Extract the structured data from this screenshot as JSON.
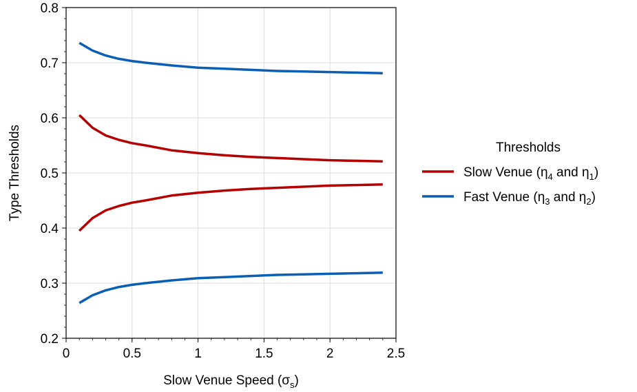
{
  "chart_data": {
    "type": "line",
    "xlabel": "Slow Venue Speed (σ",
    "xlabel_sub": "s",
    "xlabel_end": ")",
    "ylabel": "Type Thresholds",
    "xlim": [
      0,
      2.5
    ],
    "ylim": [
      0.2,
      0.8
    ],
    "xticks": [
      "0",
      "0.5",
      "1",
      "1.5",
      "2",
      "2.5"
    ],
    "yticks": [
      "0.2",
      "0.3",
      "0.4",
      "0.5",
      "0.6",
      "0.7",
      "0.8"
    ],
    "grid": true,
    "legend": {
      "title": "Thresholds",
      "placement": "right",
      "entries": [
        {
          "pre": "Slow Venue (η",
          "a": "4",
          "mid": " and η",
          "b": "1",
          "post": ")",
          "color": "#b40000"
        },
        {
          "pre": "Fast Venue (η",
          "a": "3",
          "mid": " and η",
          "b": "2",
          "post": ")",
          "color": "#0a5fb4"
        }
      ]
    },
    "x": [
      0.1,
      0.2,
      0.3,
      0.4,
      0.5,
      0.6,
      0.8,
      1.0,
      1.2,
      1.4,
      1.6,
      1.8,
      2.0,
      2.2,
      2.4
    ],
    "series": [
      {
        "group": "slow",
        "color": "#b40000",
        "values": [
          0.605,
          0.582,
          0.568,
          0.56,
          0.554,
          0.55,
          0.541,
          0.536,
          0.532,
          0.529,
          0.527,
          0.525,
          0.523,
          0.522,
          0.521
        ]
      },
      {
        "group": "slow",
        "color": "#b40000",
        "values": [
          0.395,
          0.418,
          0.432,
          0.44,
          0.446,
          0.45,
          0.459,
          0.464,
          0.468,
          0.471,
          0.473,
          0.475,
          0.477,
          0.478,
          0.479
        ]
      },
      {
        "group": "fast",
        "color": "#0a5fb4",
        "values": [
          0.736,
          0.722,
          0.713,
          0.707,
          0.703,
          0.7,
          0.695,
          0.691,
          0.689,
          0.687,
          0.685,
          0.684,
          0.683,
          0.682,
          0.681
        ]
      },
      {
        "group": "fast",
        "color": "#0a5fb4",
        "values": [
          0.264,
          0.278,
          0.287,
          0.293,
          0.297,
          0.3,
          0.305,
          0.309,
          0.311,
          0.313,
          0.315,
          0.316,
          0.317,
          0.318,
          0.319
        ]
      }
    ]
  }
}
